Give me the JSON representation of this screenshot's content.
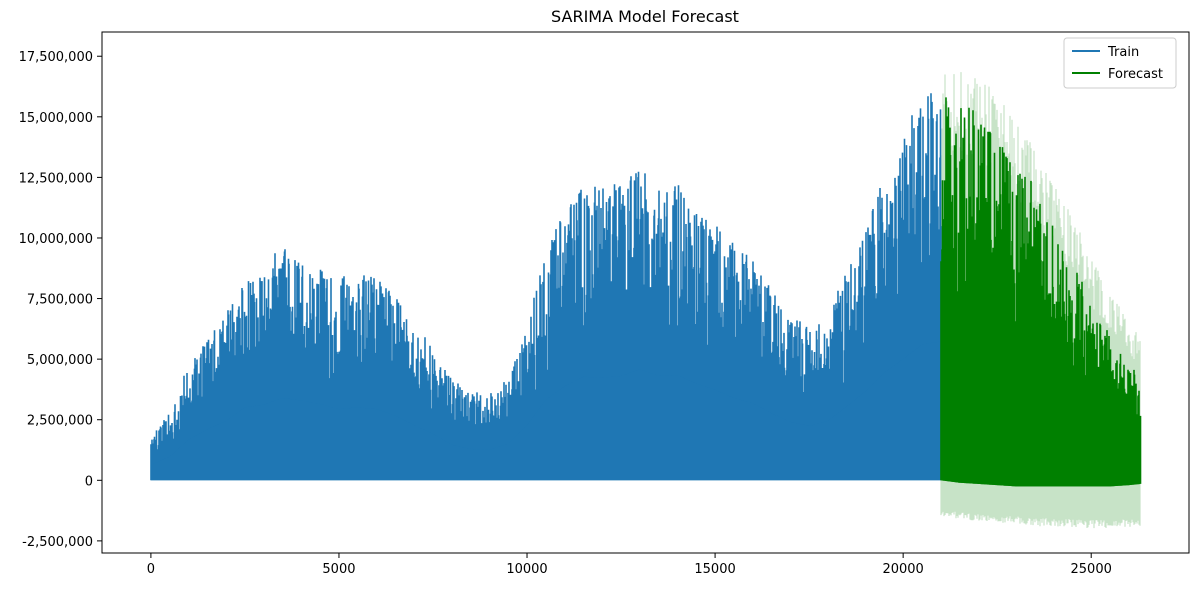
{
  "chart_data": {
    "type": "line",
    "title": "SARIMA Model Forecast",
    "xlabel": "",
    "ylabel": "",
    "xlim": [
      -1300,
      27600
    ],
    "ylim": [
      -3000000,
      18500000
    ],
    "x_ticks": [
      0,
      5000,
      10000,
      15000,
      20000,
      25000
    ],
    "x_tick_labels": [
      "0",
      "5000",
      "10000",
      "15000",
      "20000",
      "25000"
    ],
    "y_ticks": [
      -2500000,
      0,
      2500000,
      5000000,
      7500000,
      10000000,
      12500000,
      15000000,
      17500000
    ],
    "y_tick_labels": [
      "-2,500,000",
      "0",
      "2,500,000",
      "5,000,000",
      "7,500,000",
      "10,000,000",
      "12,500,000",
      "15,000,000",
      "17,500,000"
    ],
    "grid": false,
    "legend_position": "top-right",
    "series": [
      {
        "name": "Train",
        "color": "#1f77b4",
        "x": [
          0,
          500,
          1000,
          1500,
          2000,
          2500,
          3000,
          3500,
          4000,
          4500,
          5000,
          5500,
          6000,
          6500,
          7000,
          7500,
          8000,
          8500,
          9000,
          9500,
          10000,
          10500,
          11000,
          11500,
          12000,
          12500,
          13000,
          13500,
          14000,
          14500,
          15000,
          15500,
          16000,
          16500,
          17000,
          17500,
          18000,
          18500,
          19000,
          19500,
          20000,
          20500,
          21000
        ],
        "upper_envelope": [
          1800000,
          2800000,
          4800000,
          6000000,
          7000000,
          8600000,
          8900000,
          9700000,
          9400000,
          9000000,
          8400000,
          8600000,
          8400000,
          7600000,
          6500000,
          5500000,
          4200000,
          3700000,
          3600000,
          4300000,
          6500000,
          9500000,
          11100000,
          12200000,
          12100000,
          12300000,
          13100000,
          12300000,
          12400000,
          11400000,
          10700000,
          9700000,
          9100000,
          7900000,
          6900000,
          6400000,
          7000000,
          8700000,
          10500000,
          12700000,
          14300000,
          16000000,
          16400000
        ],
        "lower_envelope": [
          0,
          0,
          0,
          0,
          0,
          0,
          0,
          0,
          0,
          0,
          0,
          0,
          0,
          0,
          0,
          0,
          0,
          0,
          0,
          0,
          0,
          0,
          0,
          0,
          0,
          0,
          0,
          0,
          0,
          0,
          0,
          0,
          0,
          0,
          0,
          0,
          0,
          0,
          0,
          0,
          0,
          0,
          0
        ]
      },
      {
        "name": "Forecast",
        "color": "#008000",
        "x": [
          21000,
          21500,
          22000,
          22500,
          23000,
          23500,
          24000,
          24500,
          25000,
          25500,
          26000,
          26300
        ],
        "upper_envelope": [
          15900000,
          15600000,
          15200000,
          14300000,
          13000000,
          12200000,
          10400000,
          9100000,
          7400000,
          6000000,
          4900000,
          4300000
        ],
        "lower_envelope": [
          0,
          -100000,
          -150000,
          -200000,
          -250000,
          -250000,
          -250000,
          -250000,
          -250000,
          -250000,
          -200000,
          -150000
        ],
        "confidence_upper": [
          17200000,
          17000000,
          16800000,
          16000000,
          14800000,
          13800000,
          12200000,
          11000000,
          9200000,
          7800000,
          6500000,
          6000000
        ],
        "confidence_lower": [
          -1500000,
          -1600000,
          -1700000,
          -1800000,
          -1800000,
          -1900000,
          -1900000,
          -1950000,
          -2000000,
          -2000000,
          -1950000,
          -1900000
        ]
      }
    ]
  }
}
